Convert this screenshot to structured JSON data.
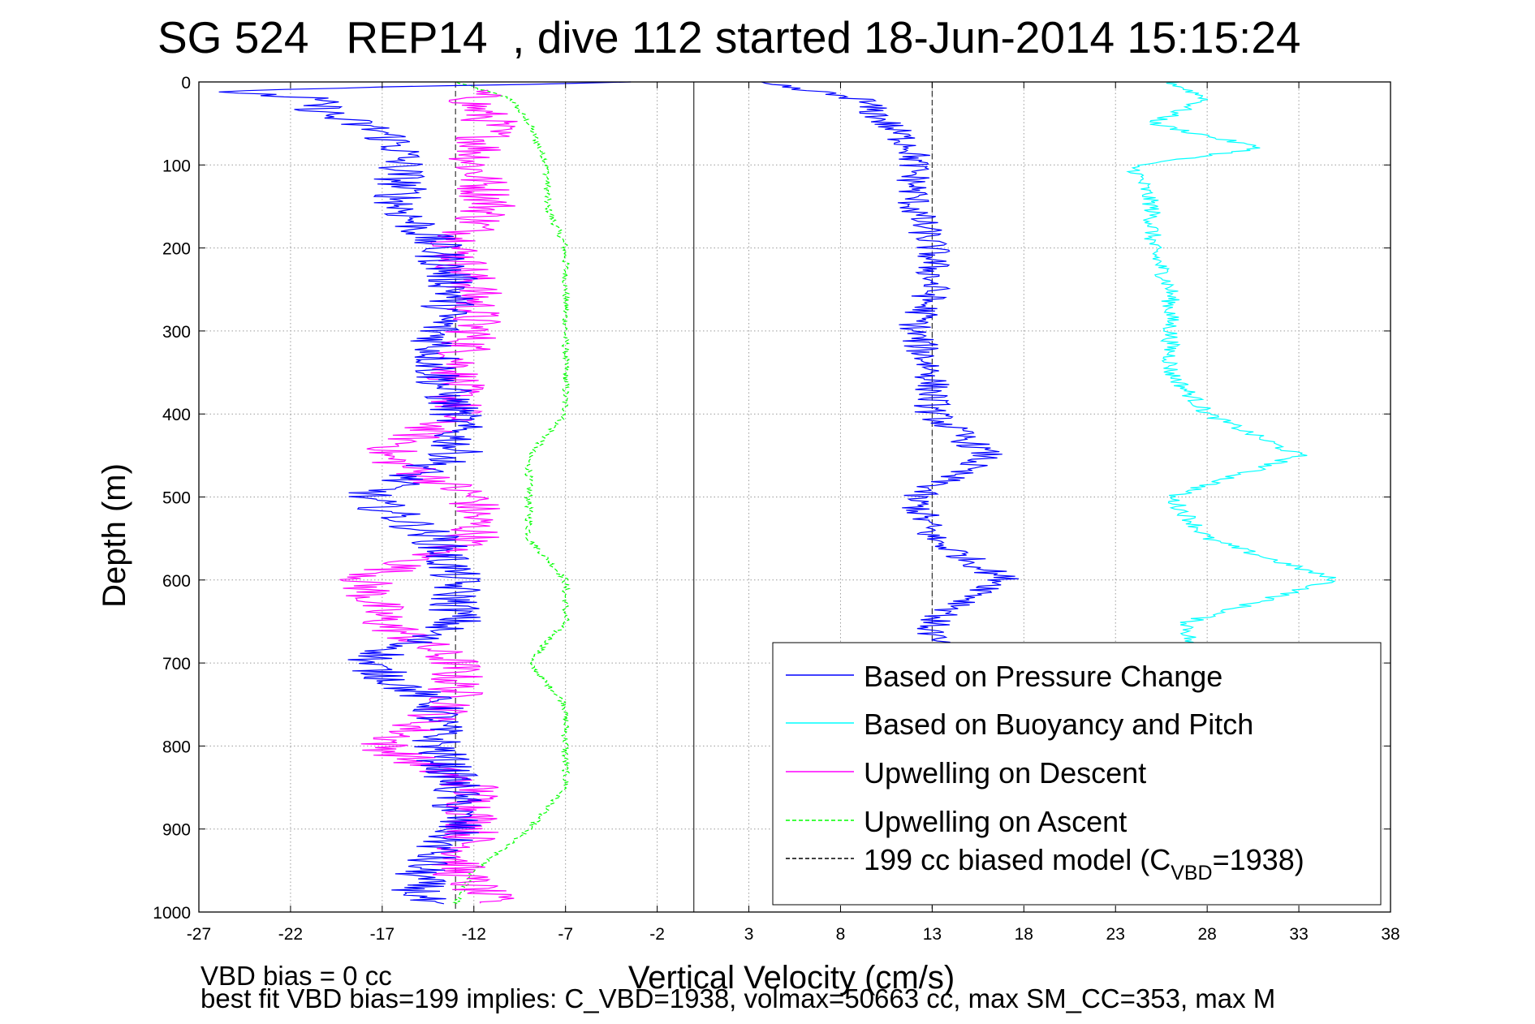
{
  "chart_data": {
    "type": "line",
    "title": "SG 524   REP14  , dive 112 started 18-Jun-2014 15:15:24",
    "xlabel": "Vertical Velocity (cm/s)",
    "ylabel": "Depth (m)",
    "xlim": [
      -27,
      38
    ],
    "ylim": [
      0,
      1000
    ],
    "y_reversed": true,
    "grid": true,
    "x_ticks": [
      "-27",
      "-22",
      "-17",
      "-12",
      "-7",
      "-2",
      "3",
      "8",
      "13",
      "18",
      "23",
      "28",
      "33",
      "38"
    ],
    "y_ticks": [
      "0",
      "100",
      "200",
      "300",
      "400",
      "500",
      "600",
      "700",
      "800",
      "900",
      "1000"
    ],
    "reference_lines_x": [
      -13,
      13
    ],
    "legend_position": "bottom-right",
    "series": [
      {
        "name": "Based on Pressure Change",
        "color": "#0000ff",
        "dash": "solid",
        "depth": [
          0,
          10,
          20,
          40,
          60,
          80,
          100,
          150,
          200,
          250,
          300,
          350,
          400,
          450,
          500,
          550,
          600,
          650,
          700,
          750,
          800,
          850,
          900,
          950,
          990
        ],
        "descent": [
          -2,
          -26,
          -21,
          -20,
          -17,
          -16,
          -16,
          -16,
          -14,
          -13,
          -14,
          -14,
          -13,
          -13,
          -18,
          -14,
          -13,
          -13,
          -18,
          -14,
          -14,
          -13,
          -13,
          -15,
          -15
        ],
        "ascent": [
          3,
          6,
          9,
          10,
          11,
          12,
          12,
          12,
          13,
          13,
          12,
          13,
          13,
          16,
          12,
          13,
          17,
          13,
          13,
          13,
          13,
          13,
          13,
          13,
          13
        ]
      },
      {
        "name": "Based on Buoyancy and Pitch",
        "color": "#00ffff",
        "dash": "solid",
        "depth": [
          0,
          20,
          50,
          80,
          100,
          150,
          200,
          250,
          300,
          350,
          400,
          450,
          500,
          550,
          600,
          650,
          700
        ],
        "values": [
          26,
          28,
          25,
          31,
          24,
          25,
          25,
          26,
          26,
          26,
          28,
          33,
          26,
          28,
          35,
          27,
          27
        ]
      },
      {
        "name": "Upwelling on Descent",
        "color": "#ff00ff",
        "dash": "solid",
        "depth": [
          10,
          30,
          50,
          100,
          150,
          200,
          250,
          300,
          350,
          400,
          450,
          500,
          550,
          600,
          650,
          700,
          750,
          800,
          850,
          900,
          950,
          990
        ],
        "values": [
          -12,
          -12,
          -11,
          -12,
          -11,
          -13,
          -12,
          -12,
          -13,
          -13,
          -17,
          -12,
          -12,
          -18,
          -17,
          -13,
          -13,
          -17,
          -12,
          -12,
          -13,
          -11
        ]
      },
      {
        "name": "Upwelling on Ascent",
        "color": "#00ff00",
        "dash": "dashed",
        "depth": [
          0,
          20,
          50,
          100,
          150,
          200,
          250,
          300,
          350,
          400,
          450,
          500,
          550,
          600,
          650,
          700,
          750,
          800,
          850,
          900,
          950,
          990
        ],
        "values": [
          -13,
          -10,
          -9,
          -8,
          -8,
          -7,
          -7,
          -7,
          -7,
          -7,
          -9,
          -9,
          -9,
          -7,
          -7,
          -9,
          -7,
          -7,
          -7,
          -9,
          -12,
          -13
        ]
      },
      {
        "name": "199 cc biased model (C",
        "subscript": "VBD",
        "name_suffix": "=1938)",
        "color": "#000000",
        "dash": "dashed"
      }
    ],
    "annotations": [
      "VBD bias = 0 cc",
      "best fit VBD bias=199 implies: C_VBD=1938, volmax=50663 cc, max SM_CC=353, max M"
    ]
  }
}
